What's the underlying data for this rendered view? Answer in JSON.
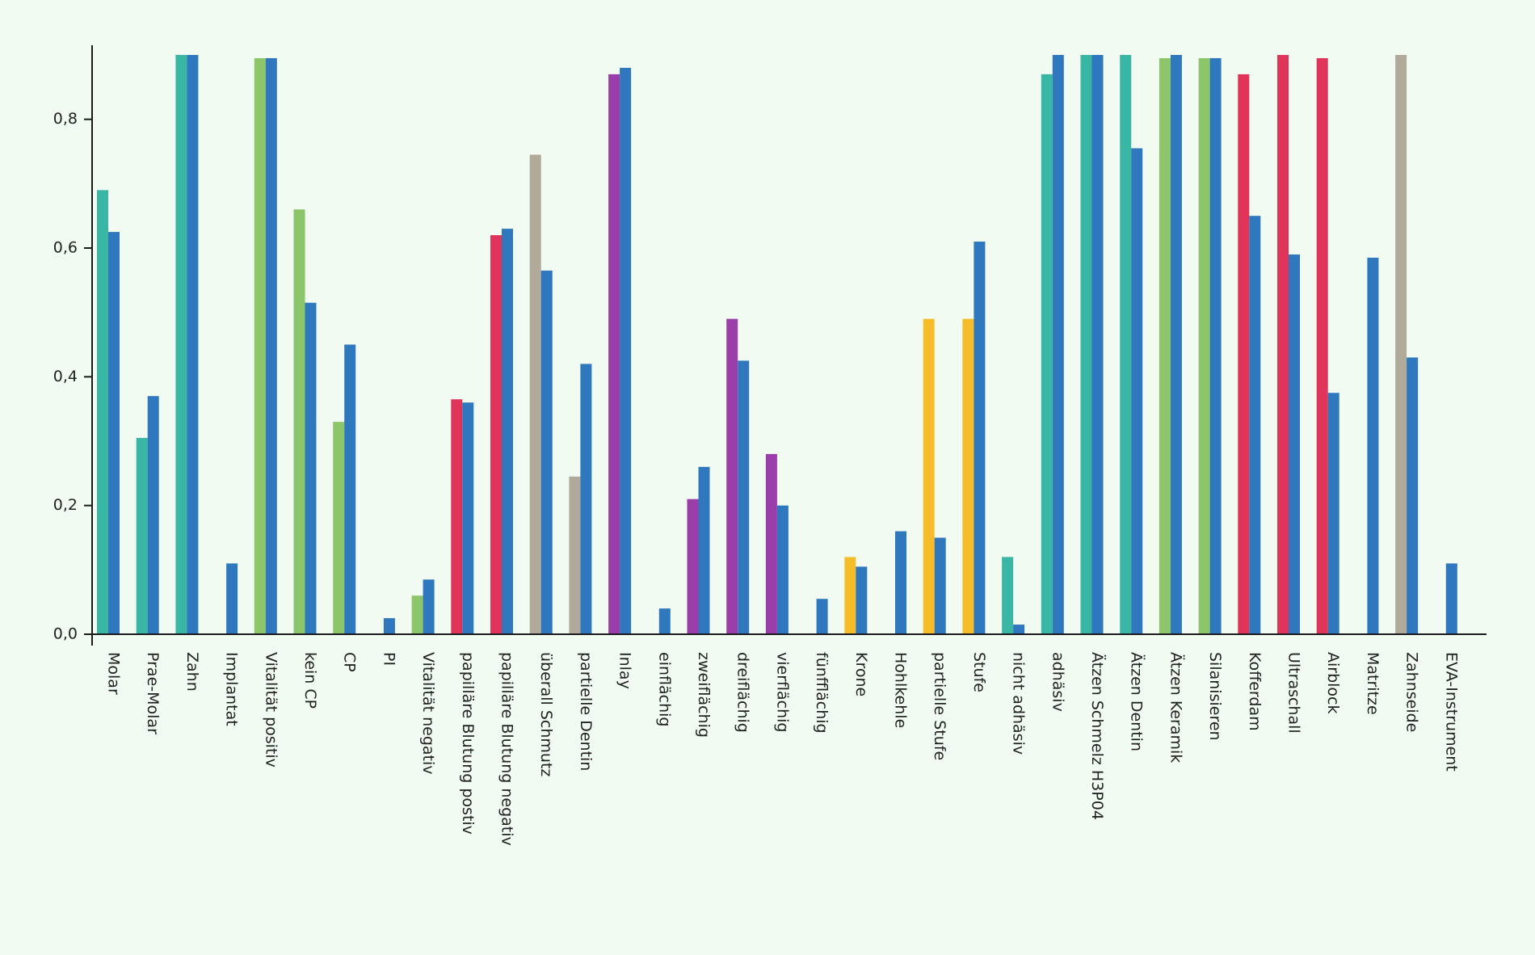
{
  "colors": {
    "background": "#f1fbf1",
    "axis": "#1a1a1a",
    "teal": "#39b6a4",
    "blue": "#2f78bd",
    "green": "#8dc66a",
    "red": "#e1345b",
    "gray": "#b1aa9b",
    "purple": "#9a3eaa",
    "yellow": "#f5bd2a"
  },
  "chart_data": {
    "type": "bar",
    "title": "",
    "xlabel": "",
    "ylabel": "",
    "ylim": [
      0,
      0.9
    ],
    "yticks": [
      0.0,
      0.2,
      0.4,
      0.6,
      0.8
    ],
    "ytick_labels": [
      "0,0",
      "0,2",
      "0,4",
      "0,6",
      "0,8"
    ],
    "grid": false,
    "legend": "none",
    "categories": [
      "Molar",
      "Prae-Molar",
      "Zahn",
      "Implantat",
      "Vitalität positiv",
      "kein CP",
      "CP",
      "PI",
      "Vitalität negativ",
      "papilläre Blutung postiv",
      "papilläre Blutung negativ",
      "überall Schmutz",
      "partielle Dentin",
      "Inlay",
      "einflächig",
      "zweiflächig",
      "dreiflächig",
      "vierflächig",
      "fünfflächig",
      "Krone",
      "Hohlkehle",
      "partielle Stufe",
      "Stufe",
      "nicht adhäsiv",
      "adhäsiv",
      "Ätzen Schmelz H3P04",
      "Ätzen Dentin",
      "Ätzen Keramik",
      "Silanisieren",
      "Kofferdam",
      "Ultraschall",
      "Airblock",
      "Matritze",
      "Zahnseide",
      "EVA-Instrument"
    ],
    "series": [
      {
        "color": "#39b6a4",
        "values": [
          0.69,
          0.305,
          0.9,
          0,
          0.895,
          0.66,
          0.33,
          0,
          0.06,
          0.365,
          0.62,
          0.745,
          0.245,
          0.87,
          0,
          0.21,
          0.49,
          0.28,
          0,
          0.12,
          0,
          0.49,
          0.49,
          0.12,
          0.87,
          0.9,
          0.9,
          0.895,
          0.895,
          0.87,
          0.9,
          0.895,
          0,
          0.9,
          0
        ],
        "colors": [
          "#39b6a4",
          "#39b6a4",
          "#39b6a4",
          "#39b6a4",
          "#8dc66a",
          "#8dc66a",
          "#8dc66a",
          "#8dc66a",
          "#8dc66a",
          "#e1345b",
          "#e1345b",
          "#b1aa9b",
          "#b1aa9b",
          "#9a3eaa",
          "#9a3eaa",
          "#9a3eaa",
          "#9a3eaa",
          "#9a3eaa",
          "#9a3eaa",
          "#f5bd2a",
          "#f5bd2a",
          "#f5bd2a",
          "#f5bd2a",
          "#39b6a4",
          "#39b6a4",
          "#39b6a4",
          "#39b6a4",
          "#8dc66a",
          "#8dc66a",
          "#e1345b",
          "#e1345b",
          "#e1345b",
          "#b1aa9b",
          "#b1aa9b",
          "#b1aa9b"
        ]
      },
      {
        "color": "#2f78bd",
        "values": [
          0.625,
          0.37,
          0.9,
          0.11,
          0.895,
          0.515,
          0.45,
          0.025,
          0.085,
          0.36,
          0.63,
          0.565,
          0.42,
          0.88,
          0.04,
          0.26,
          0.425,
          0.2,
          0.055,
          0.105,
          0.16,
          0.15,
          0.61,
          0.015,
          0.9,
          0.9,
          0.755,
          0.9,
          0.895,
          0.65,
          0.59,
          0.375,
          0.585,
          0.43,
          0.11
        ]
      }
    ]
  }
}
